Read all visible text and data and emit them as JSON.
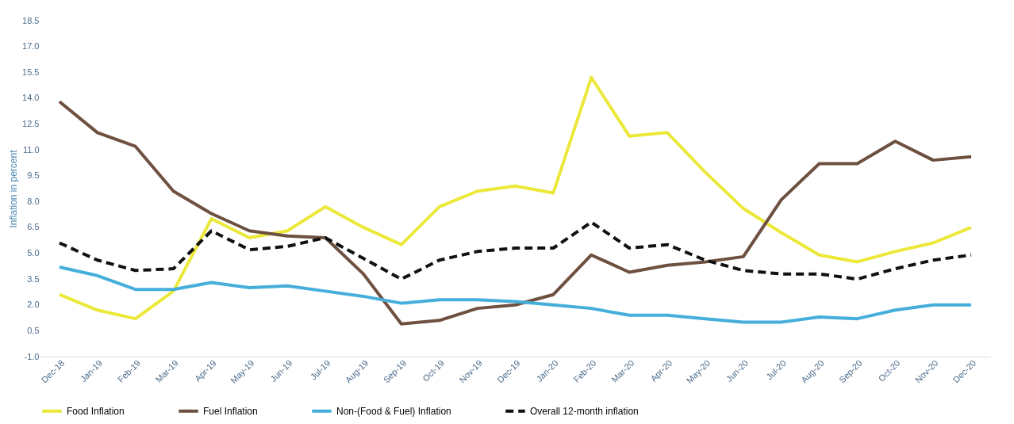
{
  "chart_data": {
    "type": "line",
    "ylabel": "Inflation in percent",
    "categories": [
      "Dec-18",
      "Jan-19",
      "Feb-19",
      "Mar-19",
      "Apr-19",
      "May-19",
      "Jun-19",
      "Jul-19",
      "Aug-19",
      "Sep-19",
      "Oct-19",
      "Nov-19",
      "Dec-19",
      "Jan-20",
      "Feb-20",
      "Mar-20",
      "Apr-20",
      "May-20",
      "Jun-20",
      "Jul-20",
      "Aug-20",
      "Sep-20",
      "Oct-20",
      "Nov-20",
      "Dec-20"
    ],
    "series": [
      {
        "name": "Food Inflation",
        "color": "#ece83a",
        "line_style": "solid",
        "values": [
          2.6,
          1.7,
          1.2,
          2.8,
          7.0,
          5.9,
          6.3,
          7.7,
          6.5,
          5.5,
          7.7,
          8.6,
          8.9,
          8.5,
          15.2,
          11.8,
          12.0,
          9.7,
          7.6,
          6.2,
          4.9,
          4.5,
          5.1,
          5.6,
          6.5
        ]
      },
      {
        "name": "Fuel Inflation",
        "color": "#6e5040",
        "line_style": "solid",
        "values": [
          13.8,
          12.0,
          11.2,
          8.6,
          7.3,
          6.3,
          6.0,
          5.9,
          3.8,
          0.9,
          1.1,
          1.8,
          2.0,
          2.6,
          4.9,
          3.9,
          4.3,
          4.5,
          4.8,
          8.1,
          10.2,
          10.2,
          11.5,
          10.4,
          10.6
        ]
      },
      {
        "name": "Non-(Food & Fuel) Inflation",
        "color": "#45aedb",
        "line_style": "solid",
        "values": [
          4.2,
          3.7,
          2.9,
          2.9,
          3.3,
          3.0,
          3.1,
          2.8,
          2.5,
          2.1,
          2.3,
          2.3,
          2.2,
          2.0,
          1.8,
          1.4,
          1.4,
          1.2,
          1.0,
          1.0,
          1.3,
          1.2,
          1.7,
          2.0,
          2.0
        ]
      },
      {
        "name": "Overall 12-month inflation",
        "color": "#111111",
        "line_style": "dashed",
        "values": [
          5.6,
          4.6,
          4.0,
          4.1,
          6.3,
          5.2,
          5.4,
          5.9,
          4.7,
          3.5,
          4.6,
          5.1,
          5.3,
          5.3,
          6.8,
          5.3,
          5.5,
          4.6,
          4.0,
          3.8,
          3.8,
          3.5,
          4.1,
          4.6,
          4.9
        ]
      }
    ],
    "ylim": [
      -1.0,
      18.5
    ],
    "yticks": [
      {
        "value": -1.0,
        "label": "-1.0"
      },
      {
        "value": 0.5,
        "label": "0.5"
      },
      {
        "value": 2.0,
        "label": "2.0"
      },
      {
        "value": 3.5,
        "label": "3.5"
      },
      {
        "value": 5.0,
        "label": "5.0"
      },
      {
        "value": 6.5,
        "label": "6.5"
      },
      {
        "value": 8.0,
        "label": "8.0"
      },
      {
        "value": 9.5,
        "label": "9.5"
      },
      {
        "value": 11.0,
        "label": "11.0"
      },
      {
        "value": 12.5,
        "label": "12.5"
      },
      {
        "value": 14.0,
        "label": "14.0"
      },
      {
        "value": 15.5,
        "label": "15.5"
      },
      {
        "value": 17.0,
        "label": "17.0"
      },
      {
        "value": 18.5,
        "label": "18.5"
      }
    ],
    "grid": false,
    "legend": "bottom",
    "marker": "none"
  }
}
